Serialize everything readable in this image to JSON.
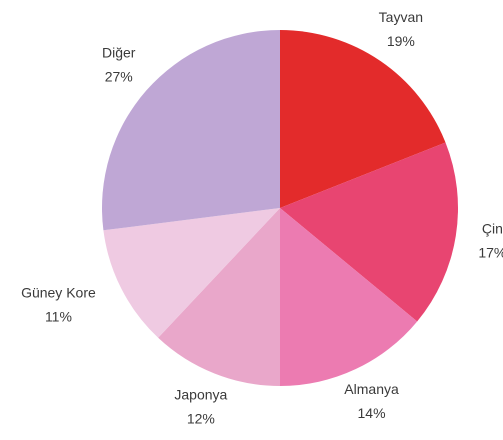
{
  "chart_data": {
    "type": "pie",
    "categories": [
      "Tayvan",
      "Çin",
      "Almanya",
      "Japonya",
      "Güney Kore",
      "Diğer"
    ],
    "values": [
      19,
      17,
      14,
      12,
      11,
      27
    ],
    "value_labels": [
      "19%",
      "17%",
      "14%",
      "12%",
      "11%",
      "27%"
    ],
    "colors": [
      "#e32b2b",
      "#e84571",
      "#ec7bb1",
      "#e9a7ca",
      "#efcae2",
      "#bfa7d5"
    ]
  }
}
